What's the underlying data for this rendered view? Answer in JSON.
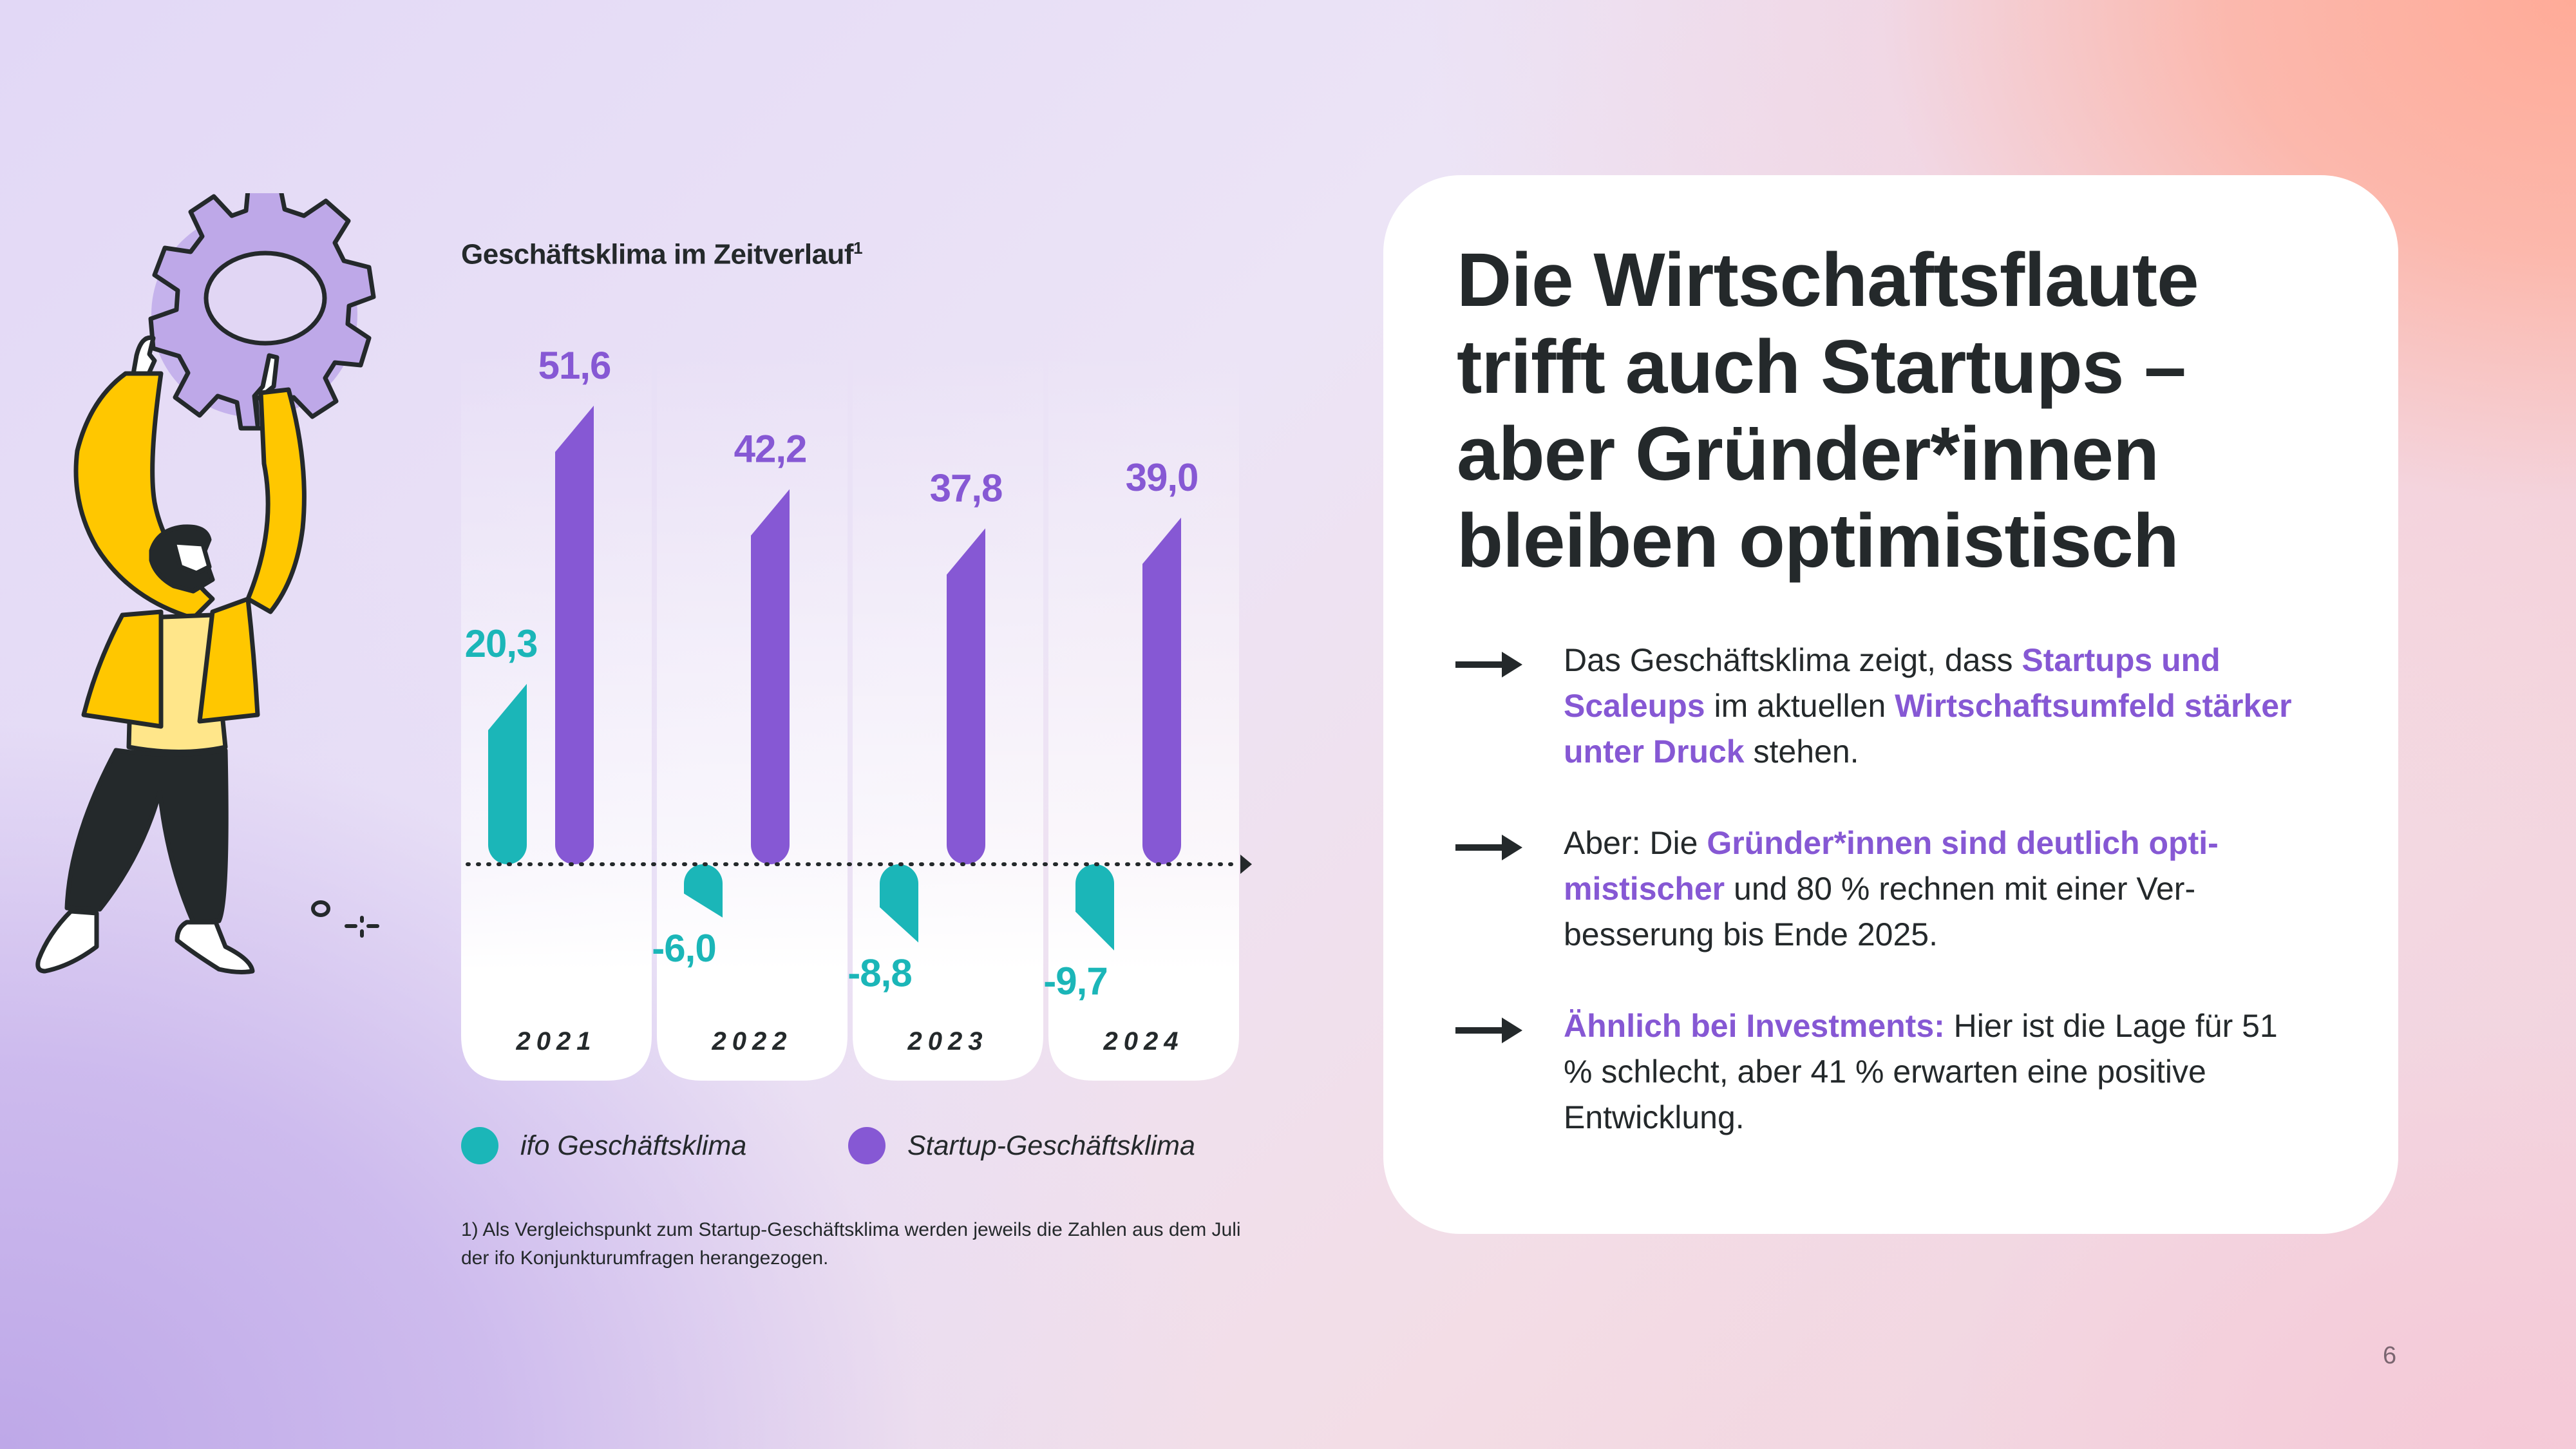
{
  "chart_data": {
    "type": "bar",
    "title": "Geschäftsklima im Zeitverlauf",
    "title_footnote_marker": "1",
    "categories": [
      "2021",
      "2022",
      "2023",
      "2024"
    ],
    "series": [
      {
        "name": "ifo Geschäftsklima",
        "color": "#1bb6b8",
        "values": [
          20.3,
          -6.0,
          -8.8,
          -9.7
        ],
        "labels": [
          "20,3",
          "-6,0",
          "-8,8",
          "-9,7"
        ]
      },
      {
        "name": "Startup-Geschäftsklima",
        "color": "#8658d4",
        "values": [
          51.6,
          42.2,
          37.8,
          39.0
        ],
        "labels": [
          "51,6",
          "42,2",
          "37,8",
          "39,0"
        ]
      }
    ],
    "xlabel": "",
    "ylabel": "",
    "grid": false,
    "legend_position": "bottom",
    "baseline": 0,
    "axis_style": "dotted-arrow"
  },
  "chart": {
    "title": "Geschäftsklima im Zeitverlauf",
    "title_sup": "1",
    "legend": [
      {
        "label": "ifo Geschäftsklima",
        "color": "#1bb6b8"
      },
      {
        "label": "Startup-Geschäftsklima",
        "color": "#8658d4"
      }
    ],
    "footnote": "1) Als Vergleichspunkt zum Startup-Geschäftsklima werden jeweils die Zahlen aus dem Juli der ifo Konjunkturumfragen herangezogen."
  },
  "card": {
    "headline": "Die Wirtschaftsflaute trifft auch Startups – aber Gründer*innen bleiben optimistisch",
    "bullets": [
      {
        "icon": "arrow-right-icon",
        "segments": [
          {
            "text": "Das Geschäftsklima zeigt, dass ",
            "highlight": false
          },
          {
            "text": "Startups und Scaleups",
            "highlight": true
          },
          {
            "text": " im aktuellen ",
            "highlight": false
          },
          {
            "text": "Wirtschaftsumfeld stärker unter Druck",
            "highlight": true
          },
          {
            "text": " stehen.",
            "highlight": false
          }
        ]
      },
      {
        "icon": "arrow-right-icon",
        "segments": [
          {
            "text": "Aber: Die ",
            "highlight": false
          },
          {
            "text": "Gründer*innen sind deutlich opti­mistischer",
            "highlight": true
          },
          {
            "text": " und 80 % rechnen mit einer Ver­besserung bis Ende 2025.",
            "highlight": false
          }
        ]
      },
      {
        "icon": "arrow-right-icon",
        "segments": [
          {
            "text": "Ähnlich bei Investments:",
            "highlight": true
          },
          {
            "text": " Hier ist die Lage für 51 % schlecht, aber 41 % erwarten eine positi­ve Entwicklung.",
            "highlight": false
          }
        ]
      }
    ]
  },
  "colors": {
    "accent_purple": "#8658d4",
    "accent_teal": "#1bb6b8",
    "text_dark": "#24292b",
    "card_bg": "#ffffff"
  },
  "page_number": "6"
}
